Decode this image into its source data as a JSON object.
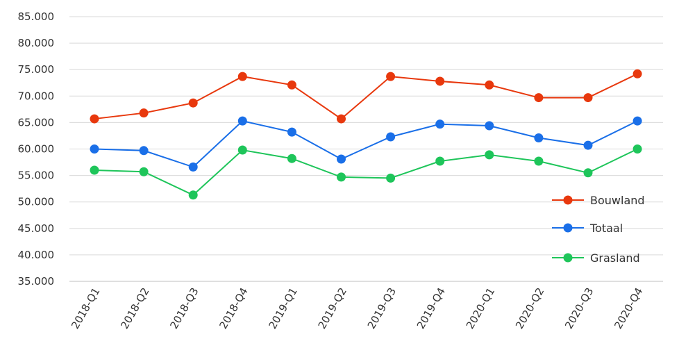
{
  "chart_data": {
    "type": "line",
    "title": "",
    "xlabel": "",
    "ylabel": "",
    "ylim": [
      35000,
      85000
    ],
    "y_ticks": [
      "35.000",
      "40.000",
      "45.000",
      "50.000",
      "55.000",
      "60.000",
      "65.000",
      "70.000",
      "75.000",
      "80.000",
      "85.000"
    ],
    "y_tick_values": [
      35000,
      40000,
      45000,
      50000,
      55000,
      60000,
      65000,
      70000,
      75000,
      80000,
      85000
    ],
    "categories": [
      "2018-Q1",
      "2018-Q2",
      "2018-Q3",
      "2018-Q4",
      "2019-Q1",
      "2019-Q2",
      "2019-Q3",
      "2019-Q4",
      "2020-Q1",
      "2020-Q2",
      "2020-Q3",
      "2020-Q4"
    ],
    "grid": true,
    "legend_position": "right",
    "series": [
      {
        "name": "Bouwland",
        "color": "#e8380d",
        "values": [
          65700,
          66800,
          68700,
          73700,
          72100,
          65700,
          73700,
          72800,
          72100,
          69700,
          69700,
          74200
        ]
      },
      {
        "name": "Totaal",
        "color": "#1a6fe8",
        "values": [
          60000,
          59700,
          56600,
          65300,
          63200,
          58100,
          62300,
          64700,
          64400,
          62100,
          60700,
          65300
        ]
      },
      {
        "name": "Grasland",
        "color": "#1ec55a",
        "values": [
          56000,
          55700,
          51300,
          59800,
          58200,
          54700,
          54500,
          57700,
          58900,
          57700,
          55500,
          60000
        ]
      }
    ]
  }
}
